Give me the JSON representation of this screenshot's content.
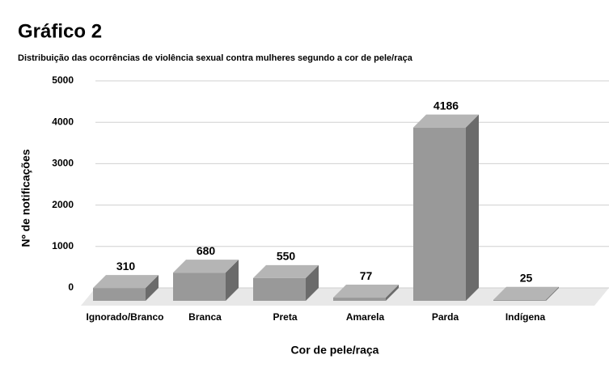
{
  "chart_data": {
    "type": "bar3d",
    "title": "Gráfico 2",
    "subtitle": "Distribuição das ocorrências de violência sexual contra mulheres segundo a cor de pele/raça",
    "x_label": "Cor de pele/raça",
    "y_label": "Nº de notificações",
    "categories": [
      "Ignorado/Branco",
      "Branca",
      "Preta",
      "Amarela",
      "Parda",
      "Indígena"
    ],
    "values": [
      310,
      680,
      550,
      77,
      4186,
      25
    ],
    "color": "#999999",
    "ylim": [
      0,
      5000
    ],
    "yticks": [
      0,
      1000,
      2000,
      3000,
      4000,
      5000
    ],
    "grid": true
  }
}
